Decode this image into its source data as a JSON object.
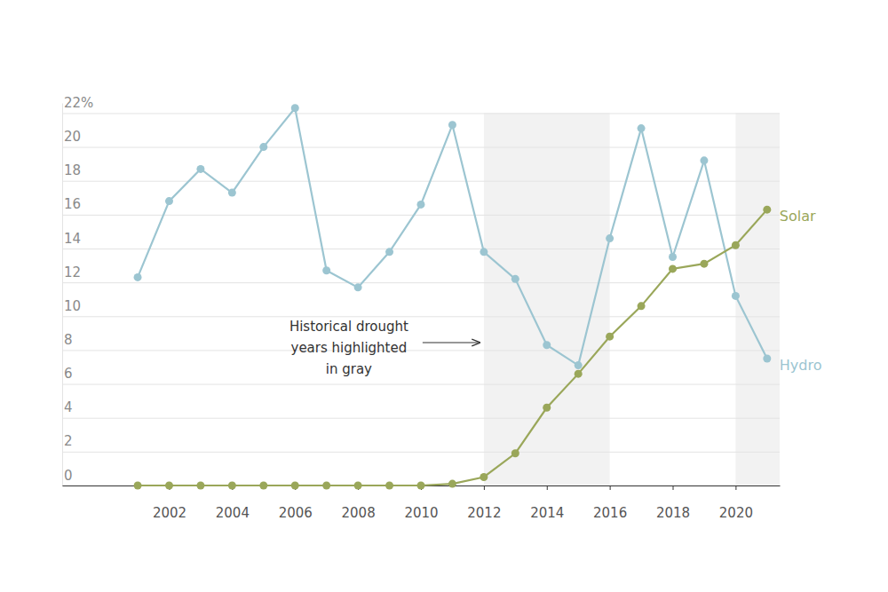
{
  "chart_data": {
    "type": "line",
    "x": [
      2001,
      2002,
      2003,
      2004,
      2005,
      2006,
      2007,
      2008,
      2009,
      2010,
      2011,
      2012,
      2013,
      2014,
      2015,
      2016,
      2017,
      2018,
      2019,
      2020,
      2021
    ],
    "xlim": [
      1998.6,
      2021.4
    ],
    "xticks": [
      2002,
      2004,
      2006,
      2008,
      2010,
      2012,
      2014,
      2016,
      2018,
      2020
    ],
    "ylim": [
      0,
      22.6
    ],
    "yticks": [
      0,
      2,
      4,
      6,
      8,
      10,
      12,
      14,
      16,
      18,
      20,
      {
        "value": 22,
        "label": "22%"
      }
    ],
    "grid": true,
    "series": [
      {
        "name": "Hydro",
        "color": "#9cc5d1",
        "marker": "circle",
        "values": [
          12.3,
          16.8,
          18.7,
          17.3,
          20.0,
          22.3,
          12.7,
          11.7,
          13.8,
          16.6,
          21.3,
          13.8,
          12.2,
          8.3,
          7.1,
          14.6,
          21.1,
          13.5,
          19.2,
          11.2,
          7.5
        ]
      },
      {
        "name": "Solar",
        "color": "#9aa75a",
        "marker": "circle",
        "values": [
          0,
          0,
          0,
          0,
          0,
          0,
          0,
          0,
          0,
          0,
          0.1,
          0.5,
          1.9,
          4.6,
          6.6,
          8.8,
          10.6,
          12.8,
          13.1,
          14.2,
          16.3
        ]
      }
    ],
    "highlight_ranges": [
      [
        2012,
        2016
      ],
      [
        2020,
        2021.4
      ]
    ],
    "annotation": [
      "Historical drought",
      "years highlighted",
      "in gray"
    ]
  }
}
